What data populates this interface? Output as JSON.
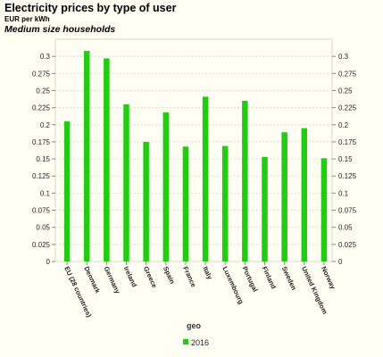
{
  "title": "Electricity prices by type of user",
  "unit": "EUR per kWh",
  "subtitle": "Medium size households",
  "chart_data": {
    "type": "bar",
    "title": "Electricity prices by type of user",
    "subtitle": "Medium size households",
    "ylabel": "EUR per kWh",
    "xlabel": "geo",
    "categories": [
      "EU (28 countries)",
      "Denmark",
      "Germany",
      "Ireland",
      "Greece",
      "Spain",
      "France",
      "Italy",
      "Luxembourg",
      "Portugal",
      "Finland",
      "Sweden",
      "United Kingdom",
      "Norway"
    ],
    "series": [
      {
        "name": "2016",
        "color": "#22cc11",
        "values": [
          0.205,
          0.308,
          0.297,
          0.23,
          0.175,
          0.218,
          0.168,
          0.241,
          0.169,
          0.235,
          0.153,
          0.189,
          0.195,
          0.151
        ]
      }
    ],
    "ylim": [
      0,
      0.325
    ],
    "yticks": [
      "0",
      "0.025",
      "0.05",
      "0.075",
      "0.1",
      "0.125",
      "0.15",
      "0.175",
      "0.2",
      "0.225",
      "0.25",
      "0.275",
      "0.3"
    ],
    "grid": true,
    "legend": "bottom-center"
  }
}
